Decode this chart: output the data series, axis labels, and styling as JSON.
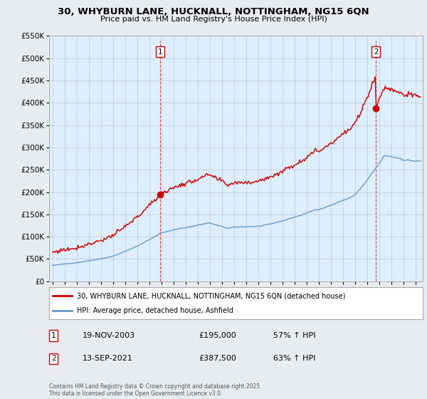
{
  "title_line1": "30, WHYBURN LANE, HUCKNALL, NOTTINGHAM, NG15 6QN",
  "title_line2": "Price paid vs. HM Land Registry's House Price Index (HPI)",
  "legend_label1": "30, WHYBURN LANE, HUCKNALL, NOTTINGHAM, NG15 6QN (detached house)",
  "legend_label2": "HPI: Average price, detached house, Ashfield",
  "footer": "Contains HM Land Registry data © Crown copyright and database right 2025.\nThis data is licensed under the Open Government Licence v3.0.",
  "sale1_label": "1",
  "sale1_date": "19-NOV-2003",
  "sale1_price": "£195,000",
  "sale1_hpi": "57% ↑ HPI",
  "sale2_label": "2",
  "sale2_date": "13-SEP-2021",
  "sale2_price": "£387,500",
  "sale2_hpi": "63% ↑ HPI",
  "red_color": "#cc0000",
  "blue_color": "#6699cc",
  "shade_color": "#ddeeff",
  "bg_color": "#e8ecf0",
  "plot_bg": "#ddeeff",
  "ylim_min": 0,
  "ylim_max": 550000,
  "ytick_step": 50000,
  "x_start_year": 1995,
  "x_end_year": 2025,
  "sale1_year": 2003,
  "sale1_month": 11,
  "sale2_year": 2021,
  "sale2_month": 9,
  "sale1_price_val": 195000,
  "sale2_price_val": 387500
}
